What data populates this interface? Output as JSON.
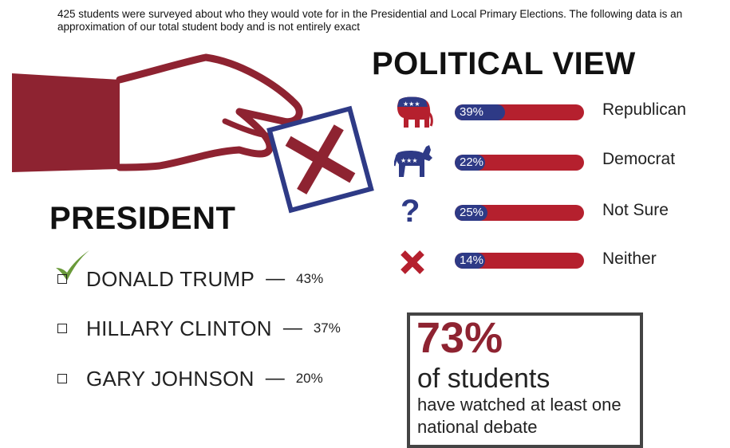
{
  "intro_text": "425 students were surveyed about who they would vote for in the Presidential and Local Primary Elections. The following data is an approximation of our total student body and is not entirely exact",
  "political_view": {
    "title": "POLITICAL VIEW"
  },
  "president": {
    "title": "PRESIDENT"
  },
  "stat": {
    "percent": "73%",
    "line1": "of students",
    "line2": "have watched at least one national debate"
  },
  "colors": {
    "republican_red": "#b5202e",
    "democrat_blue": "#2e3a86",
    "hand_red": "#8e2331",
    "check_green": "#6a9a3a"
  },
  "icons": [
    "hand-ballot-icon",
    "elephant-icon",
    "donkey-icon",
    "question-icon",
    "x-icon",
    "checkmark-icon"
  ],
  "chart_data": [
    {
      "type": "bar",
      "title": "POLITICAL VIEW",
      "categories": [
        "Republican",
        "Democrat",
        "Not Sure",
        "Neither"
      ],
      "values": [
        39,
        22,
        25,
        14
      ],
      "labels": [
        "39%",
        "22%",
        "25%",
        "14%"
      ],
      "ylim": [
        0,
        100
      ]
    },
    {
      "type": "table",
      "title": "PRESIDENT",
      "categories": [
        "DONALD TRUMP",
        "HILLARY CLINTON",
        "GARY JOHNSON"
      ],
      "values": [
        43,
        37,
        20
      ],
      "labels": [
        "43%",
        "37%",
        "20%"
      ],
      "selected": "DONALD TRUMP"
    }
  ]
}
